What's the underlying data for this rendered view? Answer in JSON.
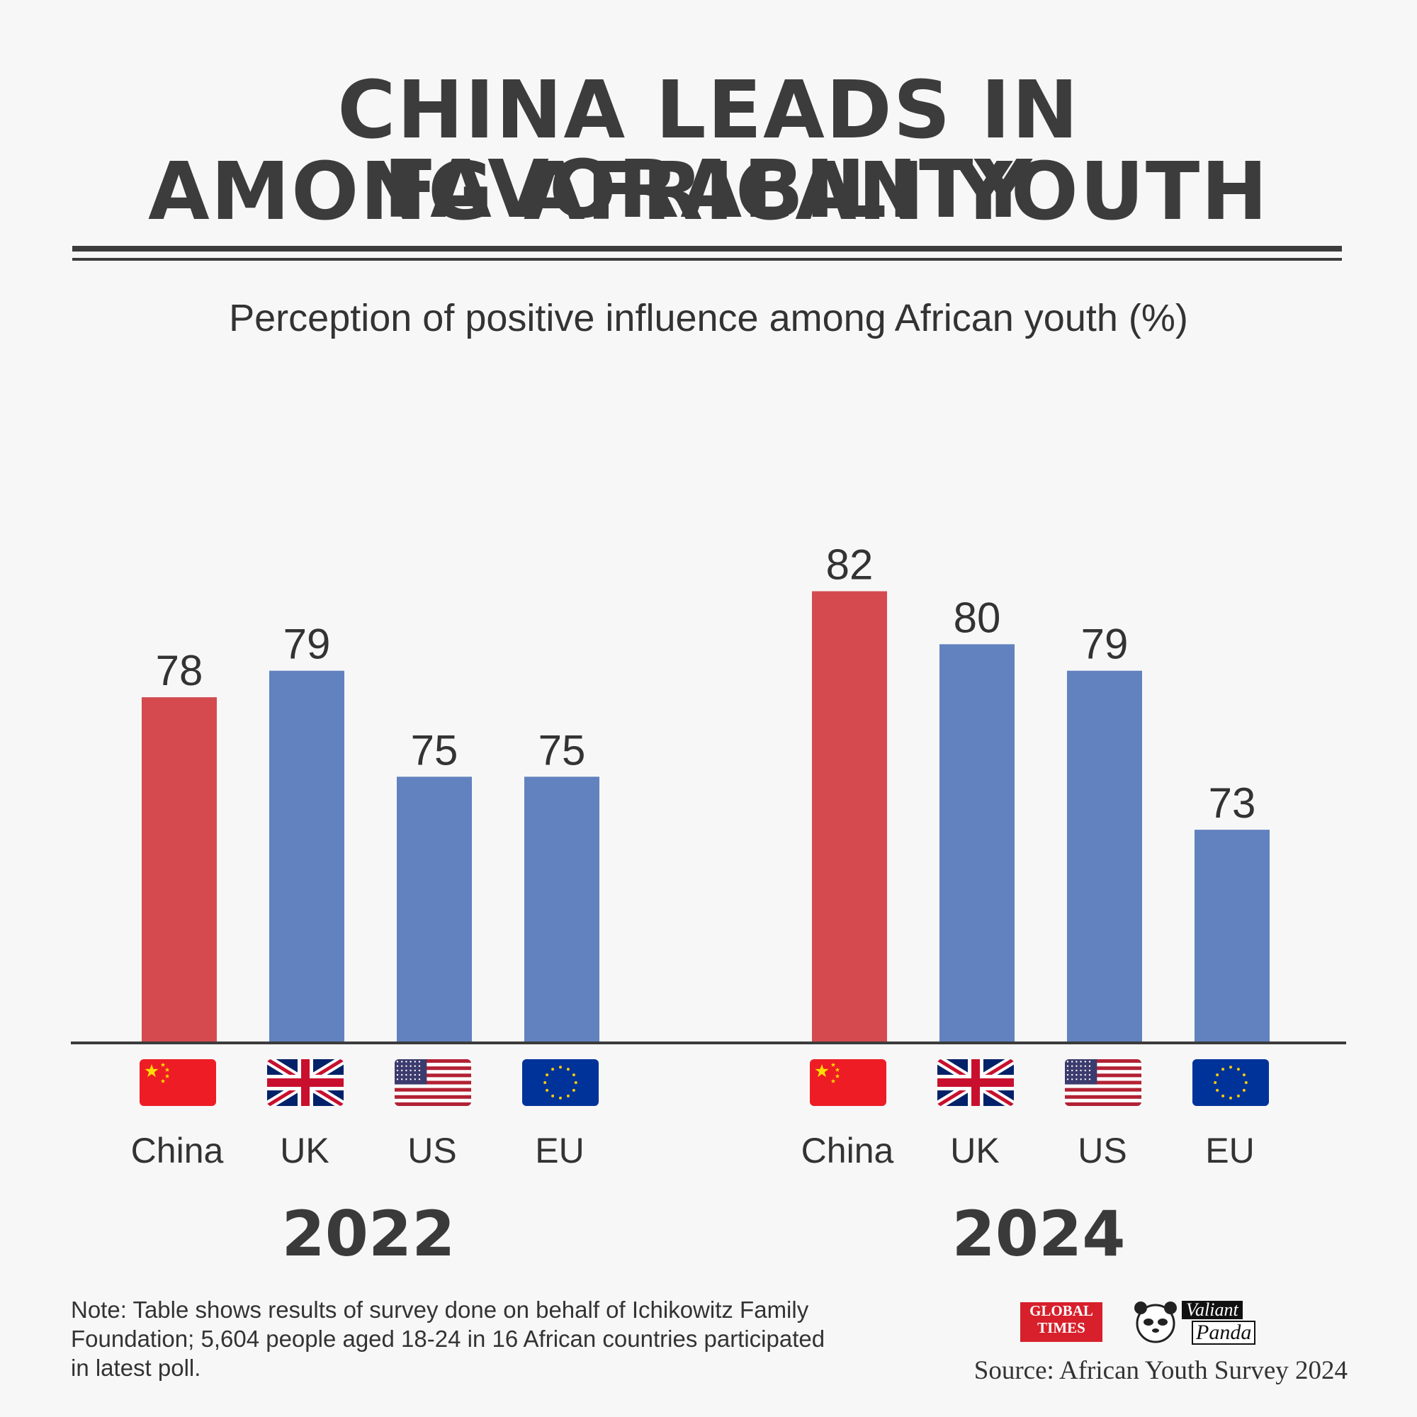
{
  "header": {
    "title_line1": "CHINA LEADS IN FAVORABILITY",
    "title_line2": "AMONG AFRICAN YOUTH"
  },
  "chart_data": {
    "type": "bar",
    "title": "CHINA LEADS IN FAVORABILITY AMONG AFRICAN YOUTH",
    "subtitle": "Perception of positive influence among African youth (%)",
    "ylabel": "",
    "ylim": [
      0,
      100
    ],
    "grid": false,
    "groups": [
      {
        "label": "2022",
        "categories": [
          "China",
          "UK",
          "US",
          "EU"
        ],
        "values": [
          78,
          79,
          75,
          75
        ],
        "colors": [
          "#d44a4f",
          "#6182be",
          "#6182be",
          "#6182be"
        ],
        "flags": [
          "china-flag-icon",
          "uk-flag-icon",
          "us-flag-icon",
          "eu-flag-icon"
        ]
      },
      {
        "label": "2024",
        "categories": [
          "China",
          "UK",
          "US",
          "EU"
        ],
        "values": [
          82,
          80,
          79,
          73
        ],
        "colors": [
          "#d44a4f",
          "#6182be",
          "#6182be",
          "#6182be"
        ],
        "flags": [
          "china-flag-icon",
          "uk-flag-icon",
          "us-flag-icon",
          "eu-flag-icon"
        ]
      }
    ]
  },
  "footer": {
    "note": "Note: Table shows results of survey done on behalf of Ichikowitz Family Foundation; 5,604 people aged 18-24 in 16 African countries participated in latest poll.",
    "source": "Source: African Youth Survey 2024",
    "logo_gt_line1": "GLOBAL",
    "logo_gt_line2": "TIMES",
    "logo_vp_line1": "Valiant",
    "logo_vp_line2": "Panda"
  },
  "colors": {
    "china": "#d44a4f",
    "others": "#6182be",
    "text": "#3c3c3c",
    "background": "#f7f7f7"
  }
}
